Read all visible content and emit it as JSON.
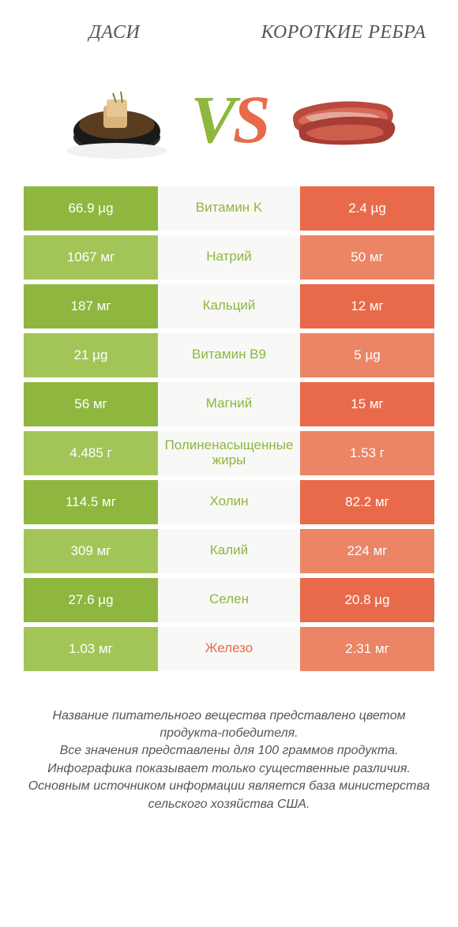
{
  "header": {
    "left_title": "ДАСИ",
    "right_title": "КОРОТКИЕ РЕБРА"
  },
  "vs": {
    "v": "V",
    "s": "S"
  },
  "colors": {
    "green": "#8fb63f",
    "green_alt": "#a3c557",
    "red": "#e86a4a",
    "red_alt": "#ec8466",
    "mid_bg": "#f8f8f6",
    "text": "#555555"
  },
  "rows": [
    {
      "left": "66.9 µg",
      "label": "Витамин K",
      "right": "2.4 µg",
      "winner": "left"
    },
    {
      "left": "1067 мг",
      "label": "Натрий",
      "right": "50 мг",
      "winner": "left"
    },
    {
      "left": "187 мг",
      "label": "Кальций",
      "right": "12 мг",
      "winner": "left"
    },
    {
      "left": "21 µg",
      "label": "Витамин B9",
      "right": "5 µg",
      "winner": "left"
    },
    {
      "left": "56 мг",
      "label": "Магний",
      "right": "15 мг",
      "winner": "left"
    },
    {
      "left": "4.485 г",
      "label": "Полиненасыщенные жиры",
      "right": "1.53 г",
      "winner": "left"
    },
    {
      "left": "114.5 мг",
      "label": "Холин",
      "right": "82.2 мг",
      "winner": "left"
    },
    {
      "left": "309 мг",
      "label": "Калий",
      "right": "224 мг",
      "winner": "left"
    },
    {
      "left": "27.6 µg",
      "label": "Селен",
      "right": "20.8 µg",
      "winner": "left"
    },
    {
      "left": "1.03 мг",
      "label": "Железо",
      "right": "2.31 мг",
      "winner": "right"
    }
  ],
  "footer": {
    "line1": "Название питательного вещества представлено цветом продукта-победителя.",
    "line2": "Все значения представлены для 100 граммов продукта.",
    "line3": "Инфографика показывает только существенные различия.",
    "line4": "Основным источником информации является база министерства сельского хозяйства США."
  }
}
